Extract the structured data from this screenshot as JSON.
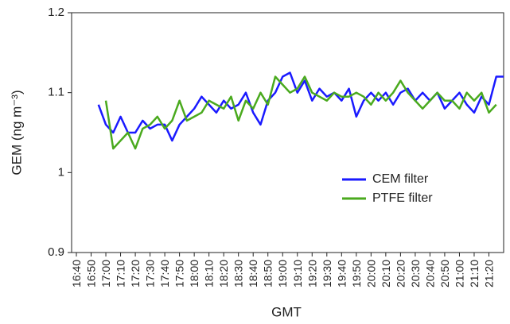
{
  "chart_data": {
    "type": "line",
    "y_label": "GEM (ng m⁻³)",
    "x_label": "GMT",
    "categories": [
      "16:40",
      null,
      "16:50",
      null,
      "17:00",
      null,
      "17:10",
      null,
      "17:20",
      null,
      "17:30",
      null,
      "17:40",
      null,
      "17:50",
      null,
      "18:00",
      null,
      "18:10",
      null,
      "18:20",
      null,
      "18:30",
      null,
      "18:40",
      null,
      "18:50",
      null,
      "19:00",
      null,
      "19:10",
      null,
      "19:20",
      null,
      "19:30",
      null,
      "19:40",
      null,
      "19:50",
      null,
      "20:00",
      null,
      "20:10",
      null,
      "20:20",
      null,
      "20:30",
      null,
      "20:40",
      null,
      "20:50",
      null,
      "21:00",
      null,
      "21:10",
      null,
      "21:20",
      null,
      null
    ],
    "series": [
      {
        "name": "CEM filter",
        "color": "#1a1aff",
        "values": [
          null,
          null,
          null,
          1.085,
          1.06,
          1.05,
          1.07,
          1.05,
          1.05,
          1.065,
          1.055,
          1.06,
          1.06,
          1.04,
          1.06,
          1.07,
          1.08,
          1.095,
          1.085,
          1.075,
          1.09,
          1.08,
          1.085,
          1.1,
          1.075,
          1.06,
          1.09,
          1.1,
          1.12,
          1.125,
          1.1,
          1.115,
          1.09,
          1.105,
          1.095,
          1.1,
          1.09,
          1.105,
          1.07,
          1.09,
          1.1,
          1.09,
          1.1,
          1.085,
          1.1,
          1.105,
          1.09,
          1.1,
          1.09,
          1.1,
          1.08,
          1.09,
          1.1,
          1.085,
          1.075,
          1.095,
          1.085,
          1.12,
          1.12
        ]
      },
      {
        "name": "PTFE filter",
        "color": "#4aaa1e",
        "values": [
          null,
          null,
          null,
          null,
          1.09,
          1.03,
          1.04,
          1.05,
          1.03,
          1.055,
          1.06,
          1.07,
          1.055,
          1.065,
          1.09,
          1.065,
          1.07,
          1.075,
          1.09,
          1.085,
          1.08,
          1.095,
          1.065,
          1.09,
          1.08,
          1.1,
          1.085,
          1.12,
          1.11,
          1.1,
          1.105,
          1.12,
          1.1,
          1.095,
          1.09,
          1.1,
          1.095,
          1.095,
          1.1,
          1.095,
          1.085,
          1.1,
          1.09,
          1.1,
          1.115,
          1.1,
          1.09,
          1.08,
          1.09,
          1.1,
          1.09,
          1.09,
          1.08,
          1.1,
          1.09,
          1.1,
          1.075,
          1.085,
          null
        ]
      }
    ],
    "ylim": [
      0.9,
      1.2
    ],
    "yticks": [
      0.9,
      1,
      1.1,
      1.2
    ],
    "legend": "lower-right"
  }
}
